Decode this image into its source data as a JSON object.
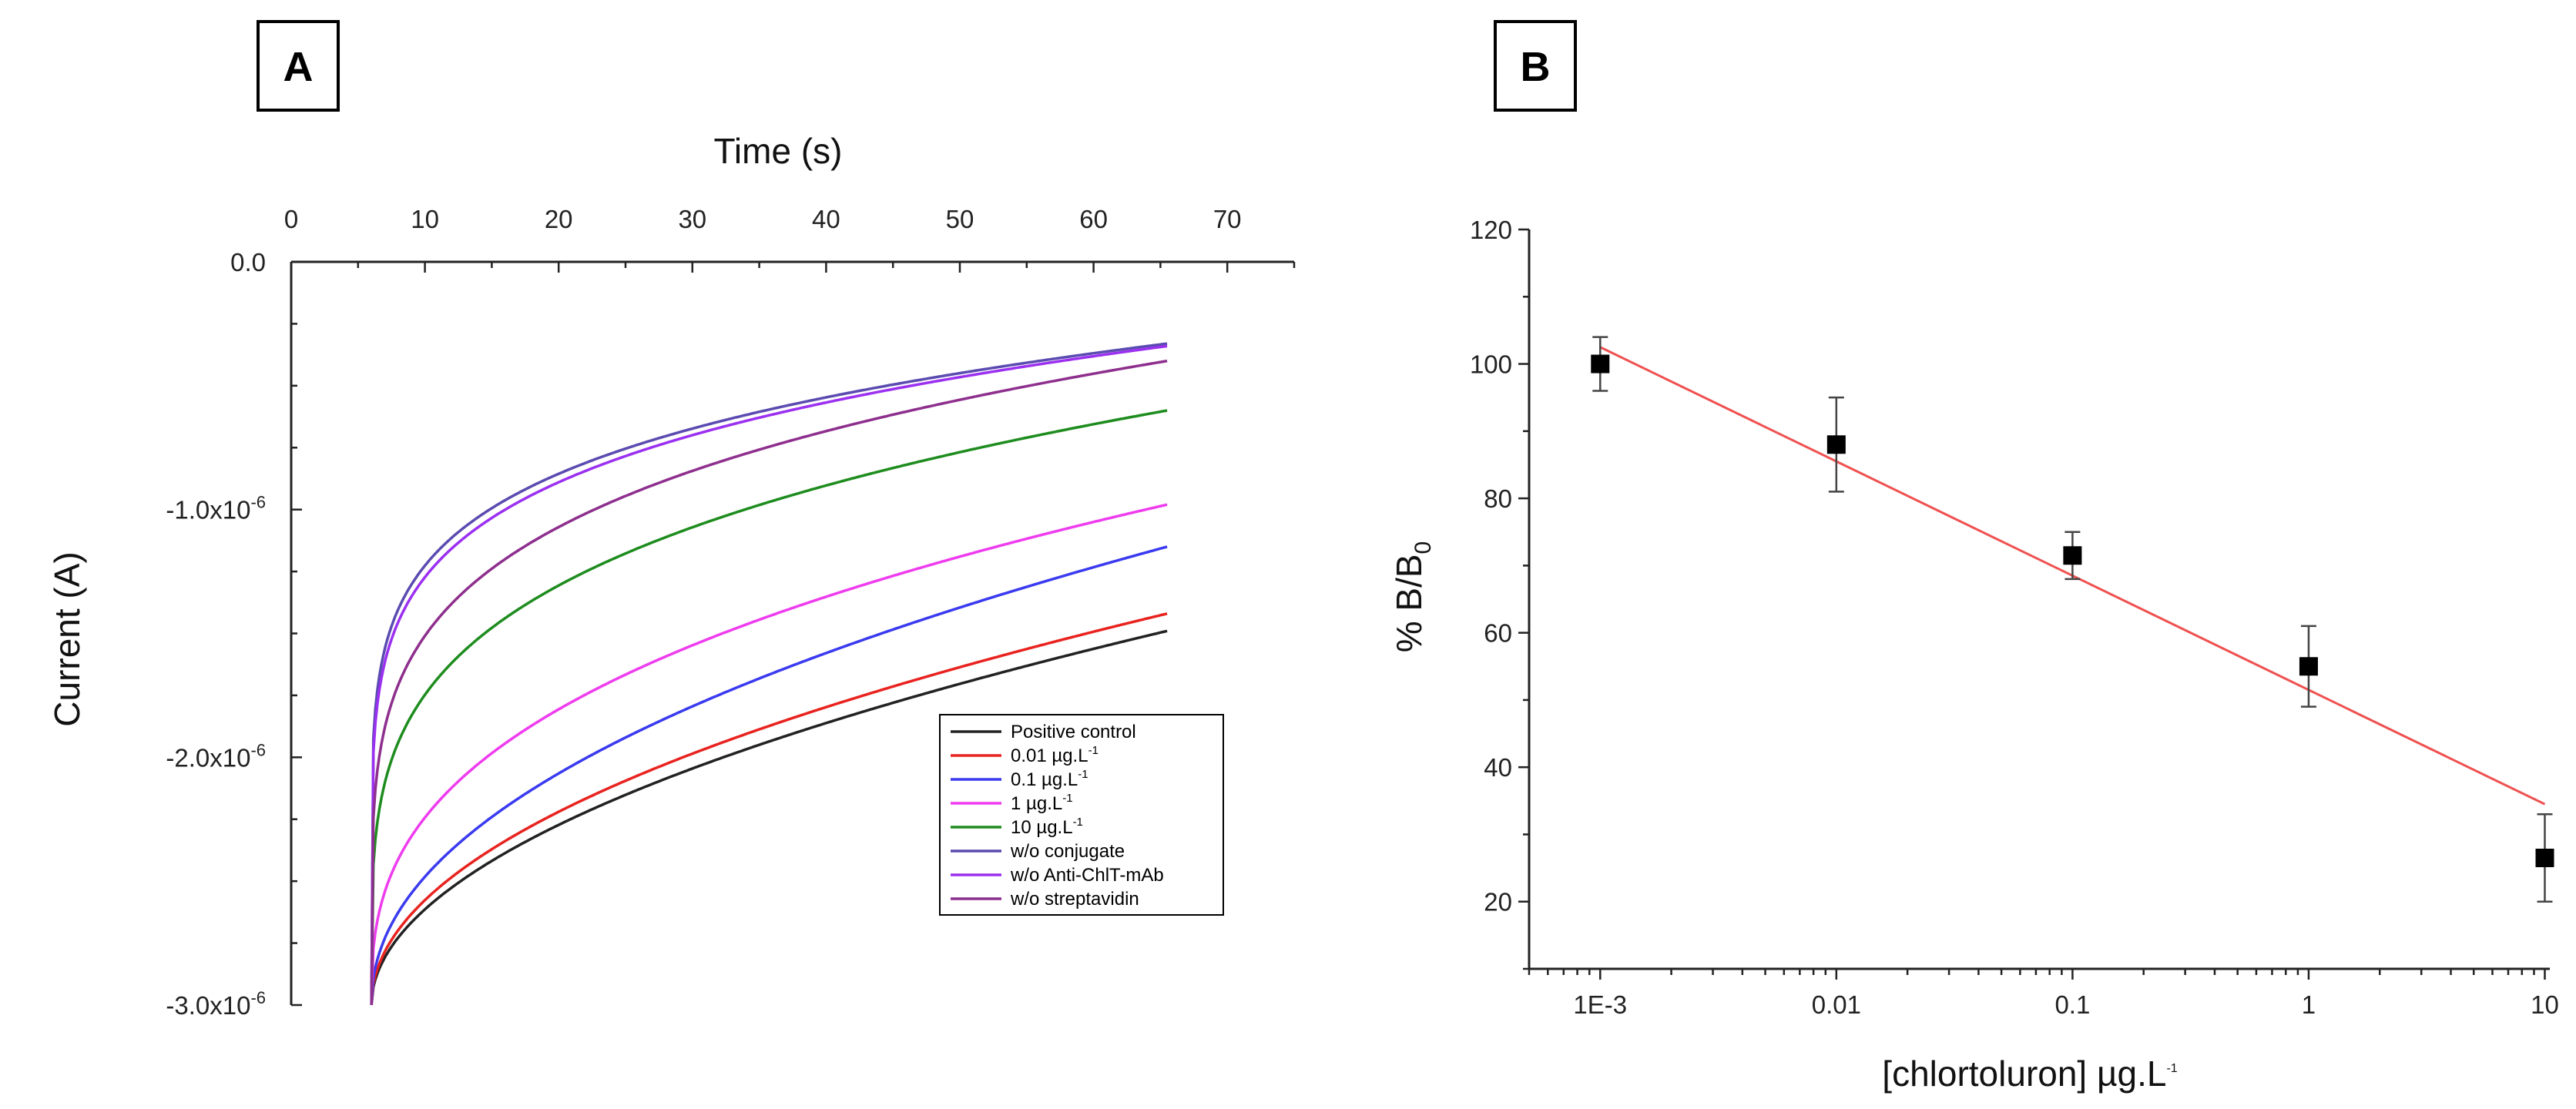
{
  "panels": [
    {
      "label": "A"
    },
    {
      "label": "B"
    }
  ],
  "chart_data": [
    {
      "type": "line",
      "panel": "A",
      "xlabel": "Time (s)",
      "xaxis_position": "top",
      "xlim": [
        0,
        75
      ],
      "x_ticks": [
        0,
        10,
        20,
        30,
        40,
        50,
        60,
        70
      ],
      "ylabel": "Current (A)",
      "ylim": [
        -3e-06,
        0
      ],
      "y_tick_labels": [
        {
          "value": 0.0,
          "label": "0.0"
        },
        {
          "value": -1e-06,
          "label": "-1.0x10",
          "exp": "-6"
        },
        {
          "value": -2e-06,
          "label": "-2.0x10",
          "exp": "-6"
        },
        {
          "value": -3e-06,
          "label": "-3.0x10",
          "exp": "-6"
        }
      ],
      "legend_position": "lower-right",
      "series": [
        {
          "name": "Positive control",
          "sup": "",
          "color": "#222222",
          "start": -3e-06,
          "end": -1.49e-06,
          "k": 2.8
        },
        {
          "name": "0.01 µg.L",
          "sup": "-1",
          "color": "#e8231f",
          "start": -3e-06,
          "end": -1.42e-06,
          "k": 3.0
        },
        {
          "name": "0.1 µg.L",
          "sup": "-1",
          "color": "#3a3af0",
          "start": -3e-06,
          "end": -1.15e-06,
          "k": 3.2
        },
        {
          "name": "1 µg.L",
          "sup": "-1",
          "color": "#ee3cee",
          "start": -3e-06,
          "end": -9.8e-07,
          "k": 5.0
        },
        {
          "name": "10 µg.L",
          "sup": "-1",
          "color": "#1e8c1e",
          "start": -3e-06,
          "end": -6e-07,
          "k": 9.0
        },
        {
          "name": "w/o conjugate",
          "sup": "",
          "color": "#5a4bb0",
          "start": -3e-06,
          "end": -3.3e-07,
          "k": 16.0
        },
        {
          "name": "w/o Anti-ChlT-mAb",
          "sup": "",
          "color": "#9b30f0",
          "start": -3e-06,
          "end": -3.4e-07,
          "k": 15.0
        },
        {
          "name": "w/o streptavidin",
          "sup": "",
          "color": "#8e2f8e",
          "start": -3e-06,
          "end": -4e-07,
          "k": 11.0
        }
      ],
      "x_start": 6,
      "x_end": 65.5
    },
    {
      "type": "scatter",
      "panel": "B",
      "xscale": "log",
      "xlabel": "[chlortoluron] µg.L",
      "xlabel_sup": "-1",
      "ylabel": "% B/B",
      "ylabel_sub": "0",
      "xlim": [
        0.0005,
        10.5
      ],
      "ylim": [
        10,
        120
      ],
      "x_tick_labels": [
        {
          "value": 0.001,
          "label": "1E-3"
        },
        {
          "value": 0.01,
          "label": "0.01"
        },
        {
          "value": 0.1,
          "label": "0.1"
        },
        {
          "value": 1,
          "label": "1"
        },
        {
          "value": 10,
          "label": "10"
        }
      ],
      "y_ticks": [
        20,
        40,
        60,
        80,
        100,
        120
      ],
      "points": [
        {
          "x": 0.001,
          "y": 100,
          "err": 4
        },
        {
          "x": 0.01,
          "y": 88,
          "err": 7
        },
        {
          "x": 0.1,
          "y": 71.5,
          "err": 3.5
        },
        {
          "x": 1,
          "y": 55,
          "err": 6
        },
        {
          "x": 10,
          "y": 26.5,
          "err": 6.5
        }
      ],
      "fit_line": {
        "x0": 0.001,
        "y0": 102.5,
        "x1": 10,
        "y1": 34.5,
        "color": "#f05050"
      },
      "marker_color": "#000000"
    }
  ]
}
